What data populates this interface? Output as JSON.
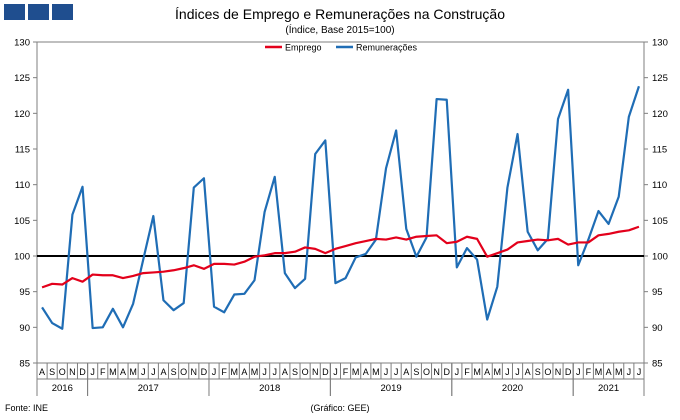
{
  "title": "Índices de Emprego e Remunerações na Construção",
  "subtitle": "(Índice, Base 2015=100)",
  "footer": {
    "source": "Fonte: INE",
    "credit": "(Gráfico: GEE)"
  },
  "colors": {
    "emprego": "#e3001b",
    "remuneracoes": "#1f6db5",
    "logo": "#1f4e8f",
    "reference": "#000000"
  },
  "chart_data": {
    "type": "line",
    "title": "Índices de Emprego e Remunerações na Construção",
    "subtitle": "(Índice, Base 2015=100)",
    "xlabel": "",
    "ylabel": "",
    "ylim": [
      85,
      130
    ],
    "yticks": [
      85,
      90,
      95,
      100,
      105,
      110,
      115,
      120,
      125,
      130
    ],
    "reference_line": 100,
    "legend_position": "top-center",
    "grid": false,
    "months": [
      "A",
      "S",
      "O",
      "N",
      "D",
      "J",
      "F",
      "M",
      "A",
      "M",
      "J",
      "J",
      "A",
      "S",
      "O",
      "N",
      "D",
      "J",
      "F",
      "M",
      "A",
      "M",
      "J",
      "J",
      "A",
      "S",
      "O",
      "N",
      "D",
      "J",
      "F",
      "M",
      "A",
      "M",
      "J",
      "J",
      "A",
      "S",
      "O",
      "N",
      "D",
      "J",
      "F",
      "M",
      "A",
      "M",
      "J",
      "J",
      "A",
      "S",
      "O",
      "N",
      "D",
      "J",
      "F",
      "M",
      "A",
      "M",
      "J",
      "J"
    ],
    "years": [
      {
        "label": "2016",
        "start": 0,
        "count": 5
      },
      {
        "label": "2017",
        "start": 5,
        "count": 12
      },
      {
        "label": "2018",
        "start": 17,
        "count": 12
      },
      {
        "label": "2019",
        "start": 29,
        "count": 12
      },
      {
        "label": "2020",
        "start": 41,
        "count": 12
      },
      {
        "label": "2021",
        "start": 53,
        "count": 7
      }
    ],
    "series": [
      {
        "name": "Emprego",
        "values": [
          95.6,
          96.1,
          96.0,
          96.9,
          96.4,
          97.4,
          97.3,
          97.3,
          96.9,
          97.2,
          97.6,
          97.7,
          97.8,
          98.0,
          98.3,
          98.7,
          98.2,
          98.9,
          98.9,
          98.8,
          99.2,
          99.9,
          100.1,
          100.4,
          100.4,
          100.6,
          101.2,
          101.0,
          100.4,
          101.0,
          101.4,
          101.8,
          102.1,
          102.4,
          102.3,
          102.6,
          102.3,
          102.7,
          102.8,
          102.9,
          101.8,
          102.0,
          102.7,
          102.4,
          99.9,
          100.4,
          100.9,
          101.9,
          102.1,
          102.3,
          102.2,
          102.4,
          101.6,
          101.9,
          101.9,
          102.9,
          103.1,
          103.4,
          103.6,
          104.1
        ]
      },
      {
        "name": "Remunerações",
        "values": [
          92.8,
          90.6,
          89.8,
          105.8,
          109.7,
          89.9,
          90.0,
          92.6,
          90.0,
          93.3,
          99.5,
          105.6,
          93.8,
          92.4,
          93.4,
          109.6,
          110.9,
          92.9,
          92.1,
          94.6,
          94.7,
          96.6,
          106.2,
          111.1,
          97.6,
          95.5,
          96.8,
          114.3,
          116.2,
          96.2,
          96.9,
          99.8,
          100.3,
          102.3,
          112.3,
          117.6,
          103.8,
          99.9,
          102.6,
          122.0,
          121.9,
          98.4,
          101.1,
          99.5,
          91.1,
          95.7,
          109.6,
          117.1,
          103.4,
          100.8,
          102.4,
          119.2,
          123.3,
          98.7,
          102.3,
          106.3,
          104.5,
          108.3,
          119.5,
          123.8
        ]
      }
    ]
  }
}
